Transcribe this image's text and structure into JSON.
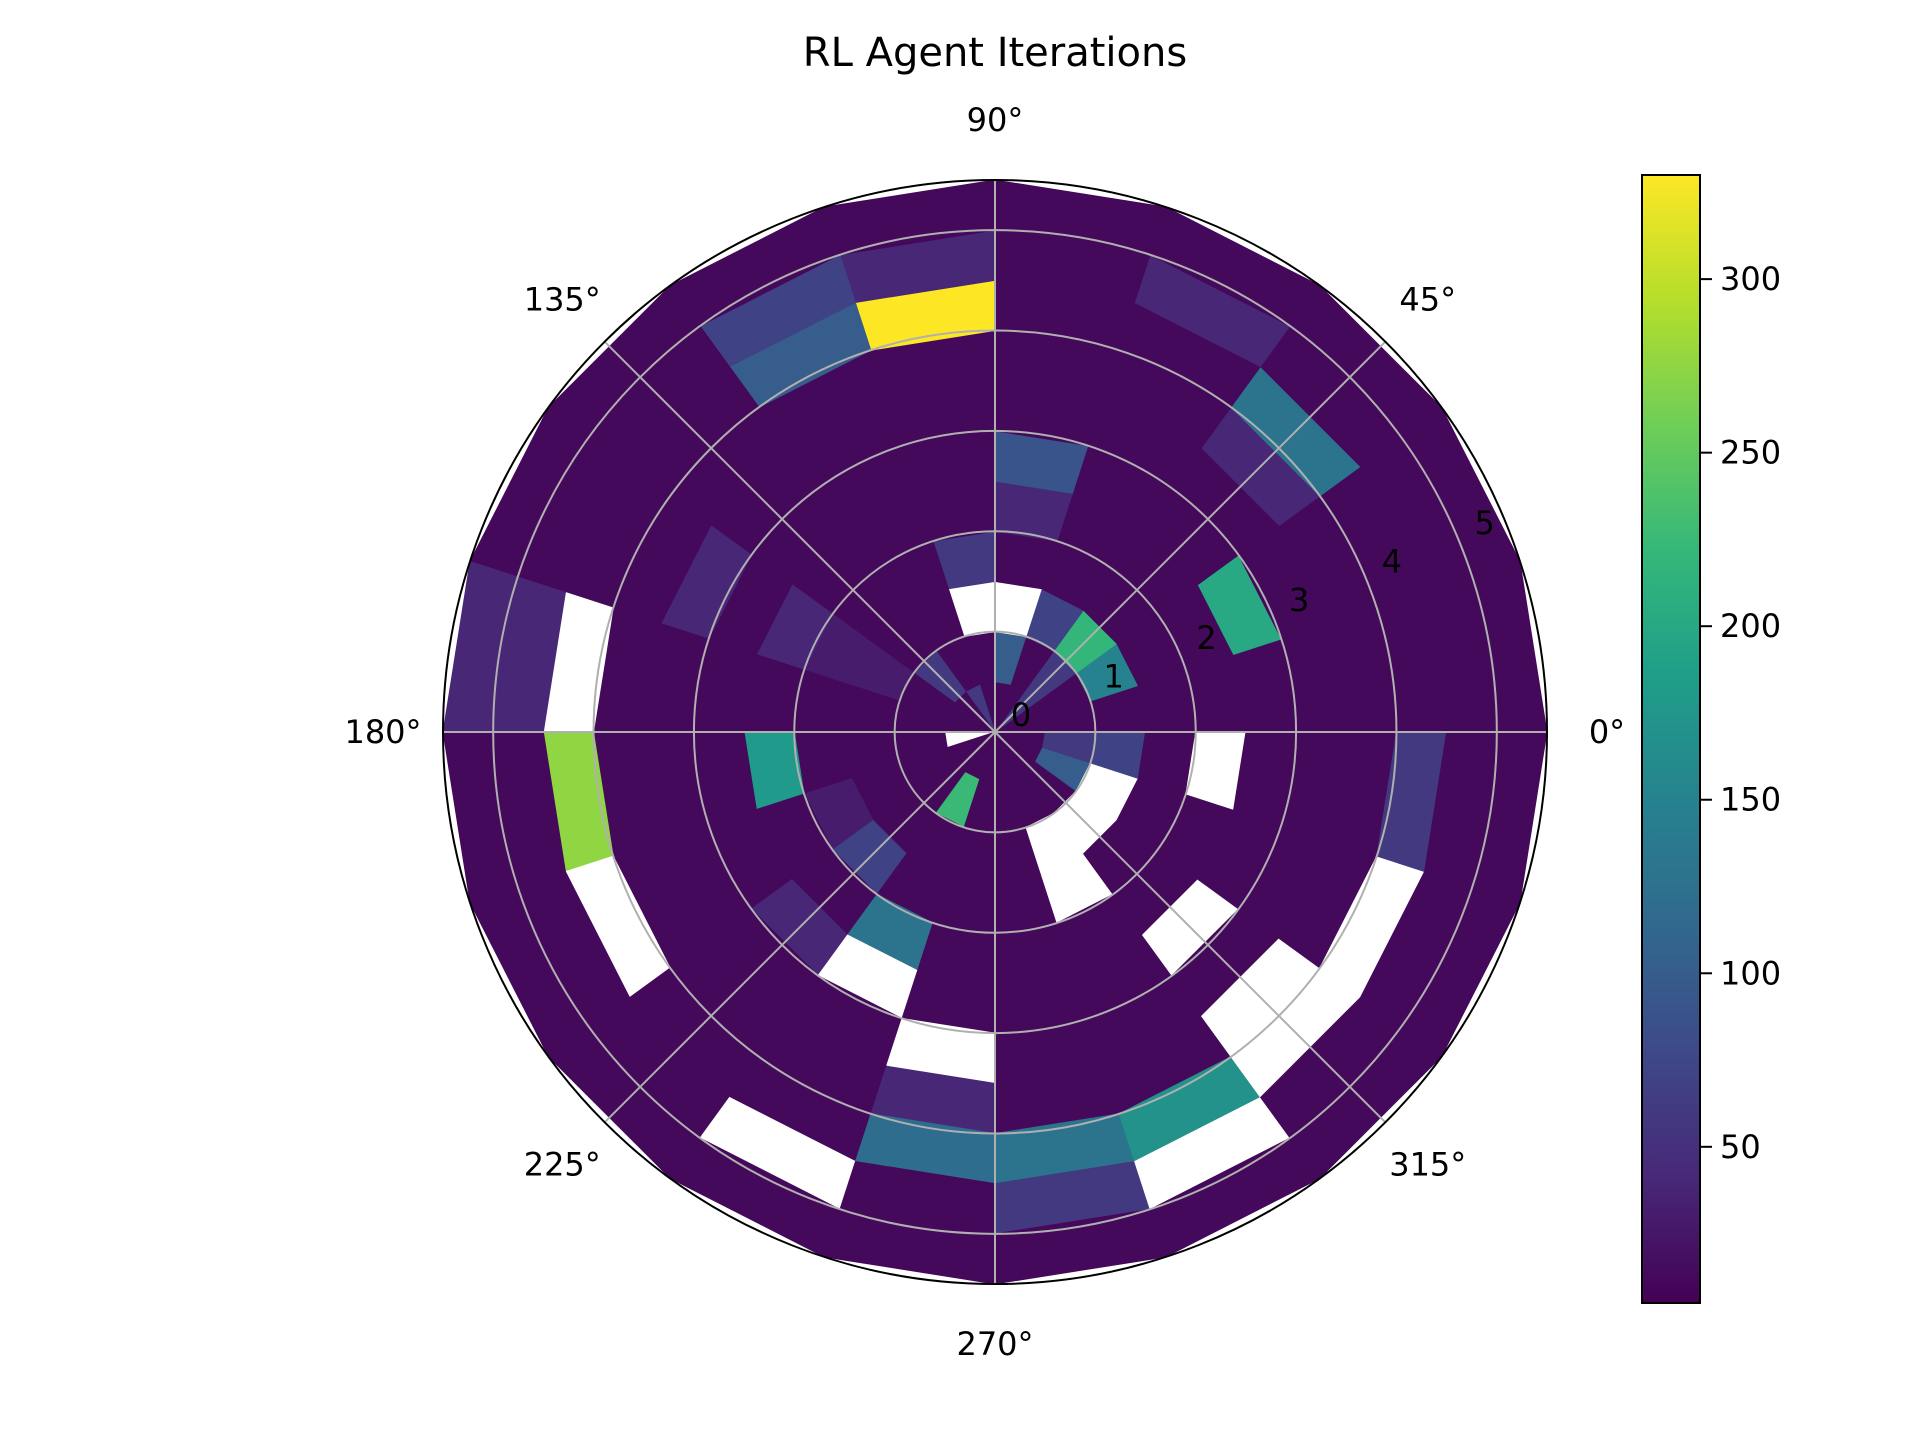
{
  "chart_data": {
    "type": "heatmap",
    "subtype": "polar",
    "title": "RL Agent Iterations",
    "theta_tick_labels": [
      "0°",
      "45°",
      "90°",
      "135°",
      "180°",
      "225°",
      "270°",
      "315°"
    ],
    "r_tick_labels": [
      "0",
      "1",
      "2",
      "3",
      "4",
      "5"
    ],
    "rlim": [
      0,
      5.5
    ],
    "grid": true,
    "colormap": "viridis",
    "colorbar": {
      "ticks": [
        50,
        100,
        150,
        200,
        250,
        300
      ],
      "range": [
        5,
        330
      ],
      "placement": "right"
    },
    "missing_color": "#ffffff",
    "theta_bins": 20,
    "r_edges": [
      0,
      0.5,
      1.0,
      1.5,
      2.0,
      2.5,
      3.0,
      3.5,
      4.0,
      4.5,
      5.0,
      5.5
    ],
    "rings": [
      [
        12,
        12,
        60,
        12,
        12,
        12,
        60,
        12,
        12,
        12,
        null,
        12,
        12,
        12,
        12,
        12,
        12,
        12,
        12,
        12
      ],
      [
        12,
        12,
        60,
        12,
        100,
        12,
        12,
        60,
        12,
        12,
        12,
        12,
        12,
        225,
        12,
        12,
        12,
        12,
        100,
        60
      ],
      [
        12,
        150,
        220,
        70,
        null,
        null,
        12,
        12,
        30,
        12,
        12,
        12,
        12,
        12,
        12,
        12,
        null,
        null,
        null,
        70
      ],
      [
        12,
        12,
        12,
        12,
        12,
        60,
        12,
        12,
        30,
        12,
        12,
        30,
        70,
        12,
        12,
        12,
        null,
        12,
        12,
        12
      ],
      [
        12,
        12,
        12,
        12,
        40,
        12,
        12,
        12,
        40,
        12,
        180,
        12,
        12,
        130,
        12,
        12,
        12,
        12,
        12,
        null
      ],
      [
        12,
        200,
        12,
        12,
        90,
        12,
        12,
        12,
        12,
        12,
        12,
        12,
        40,
        null,
        12,
        12,
        12,
        null,
        12,
        12
      ],
      [
        12,
        12,
        12,
        12,
        12,
        12,
        12,
        12,
        40,
        12,
        12,
        12,
        12,
        12,
        null,
        12,
        12,
        12,
        12,
        12
      ],
      [
        12,
        12,
        40,
        12,
        12,
        12,
        12,
        12,
        12,
        12,
        12,
        12,
        12,
        12,
        40,
        12,
        12,
        null,
        12,
        12
      ],
      [
        12,
        12,
        130,
        12,
        12,
        330,
        100,
        12,
        12,
        null,
        275,
        null,
        12,
        12,
        120,
        130,
        170,
        null,
        null,
        60
      ],
      [
        12,
        12,
        12,
        40,
        12,
        40,
        70,
        12,
        12,
        40,
        12,
        12,
        12,
        null,
        12,
        60,
        null,
        12,
        12,
        12
      ],
      [
        12,
        12,
        12,
        12,
        12,
        12,
        12,
        12,
        12,
        40,
        12,
        12,
        12,
        12,
        12,
        12,
        12,
        12,
        12,
        12
      ]
    ]
  }
}
